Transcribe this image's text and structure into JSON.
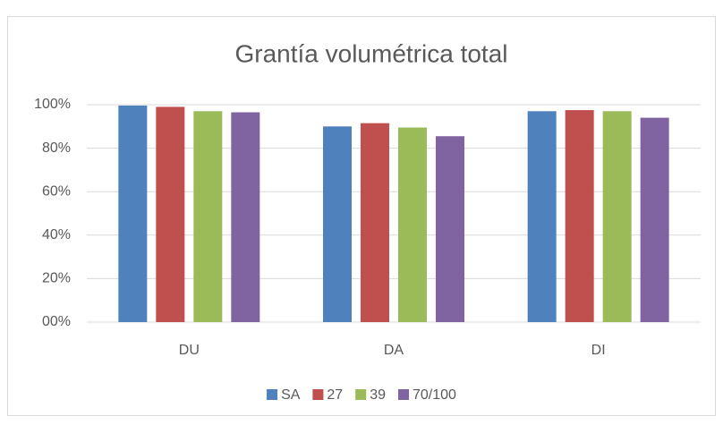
{
  "chart_data": {
    "type": "bar",
    "title": "Grantía volumétrica total",
    "categories": [
      "DU",
      "DA",
      "DI"
    ],
    "series": [
      {
        "name": "SA",
        "color": "#4f81bd",
        "values": [
          99.6,
          90,
          97
        ]
      },
      {
        "name": "27",
        "color": "#c0504d",
        "values": [
          99,
          91.5,
          97.5
        ]
      },
      {
        "name": "39",
        "color": "#9bbb59",
        "values": [
          97,
          89.5,
          97
        ]
      },
      {
        "name": "70/100",
        "color": "#8064a2",
        "values": [
          96.5,
          85.5,
          94
        ]
      }
    ],
    "ylim": [
      0,
      100
    ],
    "yticks": [
      {
        "value": 0,
        "label": "00%"
      },
      {
        "value": 20,
        "label": "20%"
      },
      {
        "value": 40,
        "label": "40%"
      },
      {
        "value": 60,
        "label": "60%"
      },
      {
        "value": 80,
        "label": "80%"
      },
      {
        "value": 100,
        "label": "100%"
      }
    ],
    "grid": true,
    "legend": "bottom"
  }
}
